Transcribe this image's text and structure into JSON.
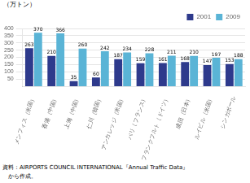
{
  "chart_data": {
    "type": "bar",
    "categories": [
      "メンフィス（米国）",
      "香港（中国）",
      "上海（中国）",
      "仁川（韓国）",
      "アンカレッジ（米国）",
      "パリ（フランス）",
      "フランクフルト（ドイツ）",
      "成田（日本）",
      "ルイビル（米国）",
      "シンガポール"
    ],
    "series": [
      {
        "name": "2001",
        "color": "#2e3a8c",
        "values": [
          263,
          210,
          35,
          60,
          187,
          159,
          161,
          168,
          147,
          153
        ]
      },
      {
        "name": "2009",
        "color": "#5ab4d6",
        "values": [
          370,
          366,
          260,
          242,
          234,
          228,
          211,
          210,
          197,
          188
        ]
      }
    ],
    "ylabel": "（万トン）",
    "ylim": [
      0,
      400
    ],
    "yticks": [
      50,
      100,
      150,
      200,
      250,
      300,
      350,
      400
    ],
    "grid": true,
    "legend": "upper right",
    "data_labels": true,
    "annotations": [
      "資料：AIRPORTS COUNCIL INTERNATIONAL『Annual Traffic Data』",
      "　から作成。"
    ]
  }
}
